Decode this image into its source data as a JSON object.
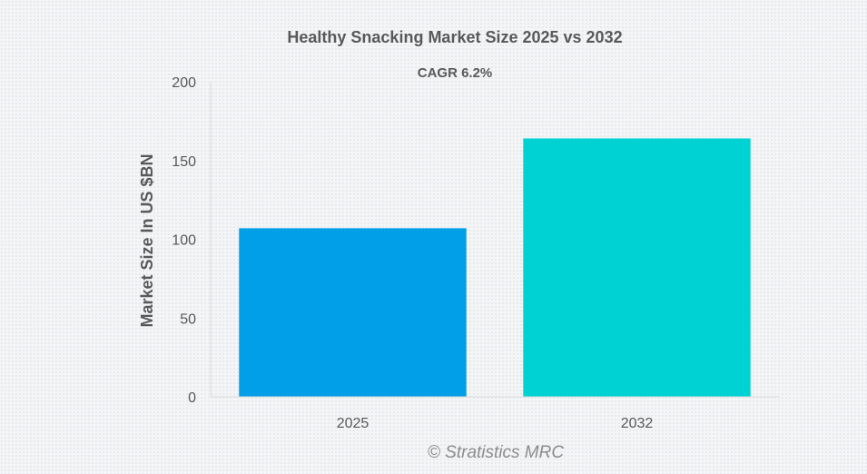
{
  "chart_data": {
    "type": "bar",
    "title": "Healthy Snacking Market Size 2025 vs 2032",
    "subtitle": "CAGR 6.2%",
    "xlabel": "",
    "ylabel": "Market Size In US $BN",
    "categories": [
      "2025",
      "2032"
    ],
    "values": [
      107,
      164
    ],
    "colors": [
      "#009fe8",
      "#00d2d3"
    ],
    "ylim": [
      0,
      200
    ],
    "yticks": [
      0,
      50,
      100,
      150,
      200
    ],
    "grid": false,
    "legend": "none",
    "credit": "© Stratistics MRC"
  }
}
